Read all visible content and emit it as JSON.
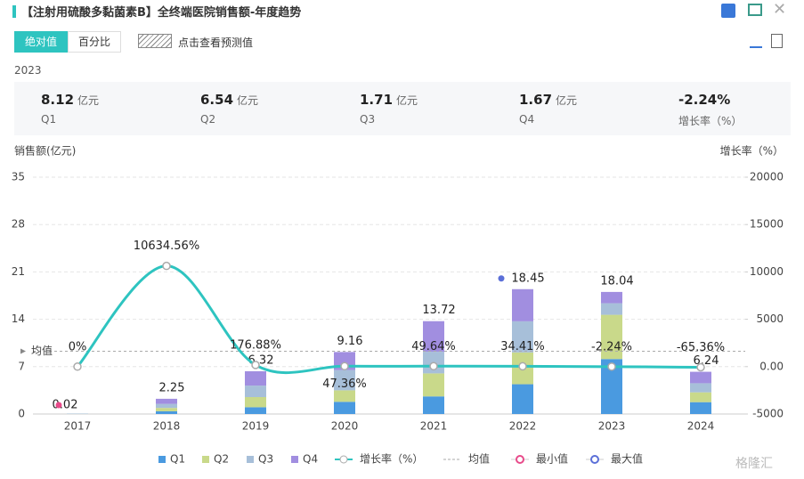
{
  "header": {
    "title": "【注射用硫酸多黏菌素B】全终端医院销售额-年度趋势",
    "toggles": [
      "绝对值",
      "百分比"
    ],
    "forecast": "点击查看预测值",
    "year": "2023"
  },
  "summary": [
    {
      "value": 8.12,
      "unit": "亿元",
      "label": "Q1"
    },
    {
      "value": 6.54,
      "unit": "亿元",
      "label": "Q2"
    },
    {
      "value": 1.71,
      "unit": "亿元",
      "label": "Q3"
    },
    {
      "value": 1.67,
      "unit": "亿元",
      "label": "Q4"
    },
    {
      "value": "-2.24%",
      "label": "增长率（%）"
    }
  ],
  "watermark": "格隆汇",
  "chart_data": {
    "type": "bar",
    "stacked": true,
    "y_label": "销售额(亿元)",
    "y2_label": "增长率（%）",
    "categories": [
      "2017",
      "2018",
      "2019",
      "2020",
      "2021",
      "2022",
      "2023",
      "2024"
    ],
    "series": [
      {
        "name": "Q1",
        "color": "#4a9ae0",
        "values": [
          0.02,
          0.4,
          1.0,
          1.8,
          2.6,
          4.4,
          8.12,
          1.75
        ]
      },
      {
        "name": "Q2",
        "color": "#c9d98a",
        "values": [
          0,
          0.5,
          1.5,
          1.7,
          3.4,
          4.7,
          6.54,
          1.45
        ]
      },
      {
        "name": "Q3",
        "color": "#a7bfd9",
        "values": [
          0,
          0.6,
          1.7,
          3.0,
          3.2,
          4.6,
          1.71,
          1.35
        ]
      },
      {
        "name": "Q4",
        "color": "#a18ee0",
        "values": [
          0,
          0.75,
          2.12,
          2.66,
          4.52,
          4.75,
          1.67,
          1.69
        ]
      },
      {
        "name": "增长率（%）",
        "type": "line",
        "axis": "y2",
        "color": "#2ec4c0",
        "values": [
          0,
          10634.56,
          176.88,
          47.36,
          49.64,
          34.41,
          -2.24,
          -65.36
        ],
        "value_labels": [
          "0%",
          "10634.56%",
          "176.88%",
          "47.36%",
          "49.64%",
          "34.41%",
          "-2.24%",
          "-65.36%"
        ]
      }
    ],
    "totals": [
      0.02,
      2.25,
      6.32,
      9.16,
      13.72,
      18.45,
      18.04,
      6.24
    ],
    "mean": {
      "name": "均值",
      "label": "均值",
      "value": 9.28
    },
    "min": {
      "name": "最小值",
      "color": "#e84a8a",
      "index": 0
    },
    "max": {
      "name": "最大值",
      "color": "#5b6fd8",
      "index": 5
    },
    "ylim": [
      0,
      35
    ],
    "yticks": [
      0,
      7,
      14,
      21,
      28,
      35
    ],
    "y2lim": [
      -5000,
      20000
    ],
    "y2ticks": [
      -5000,
      {
        "value": 0,
        "label": "0.00"
      },
      5000,
      10000,
      15000,
      20000
    ]
  }
}
